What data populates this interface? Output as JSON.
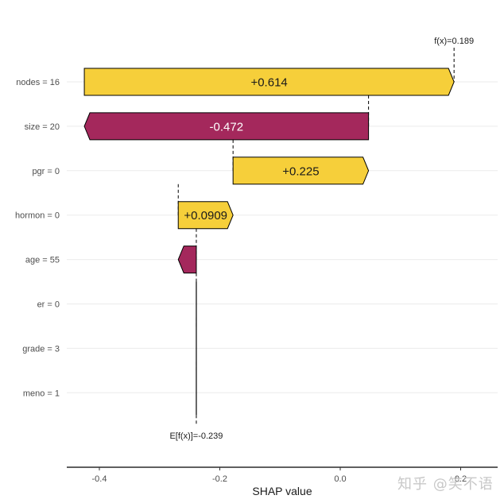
{
  "chart_data": {
    "type": "waterfall",
    "title": "",
    "xlabel": "SHAP value",
    "ylabel": "",
    "xlim": [
      -0.46,
      0.26
    ],
    "x_ticks": [
      -0.4,
      -0.2,
      0.0,
      0.2
    ],
    "x_tick_labels": [
      "-0.4",
      "-0.2",
      "0.0",
      "0.2"
    ],
    "grid": "horizontal",
    "base_value": -0.239,
    "base_label": "E[f(x)]=-0.239",
    "output_value": 0.189,
    "output_label": "f(x)=0.189",
    "features": [
      {
        "label": "nodes = 16",
        "value": 0.614,
        "value_label": "+0.614",
        "start": -0.425,
        "end": 0.189
      },
      {
        "label": "size = 20",
        "value": -0.472,
        "value_label": "-0.472",
        "start": 0.047,
        "end": -0.425
      },
      {
        "label": "pgr = 0",
        "value": 0.225,
        "value_label": "+0.225",
        "start": -0.178,
        "end": 0.047
      },
      {
        "label": "hormon = 0",
        "value": 0.0909,
        "value_label": "+0.0909",
        "start": -0.269,
        "end": -0.178
      },
      {
        "label": "age = 55",
        "value": -0.03,
        "value_label": "",
        "start": -0.239,
        "end": -0.269
      },
      {
        "label": "er = 0",
        "value": 0.0,
        "value_label": "",
        "start": -0.239,
        "end": -0.239
      },
      {
        "label": "grade = 3",
        "value": 0.0,
        "value_label": "",
        "start": -0.239,
        "end": -0.239
      },
      {
        "label": "meno = 1",
        "value": 0.0,
        "value_label": "",
        "start": -0.239,
        "end": -0.239
      }
    ],
    "colors": {
      "positive": "#F6CF3A",
      "negative": "#A4285C",
      "outline": "#000000",
      "grid": "#EBEBEB"
    }
  },
  "watermark": "知乎 @笑不语"
}
